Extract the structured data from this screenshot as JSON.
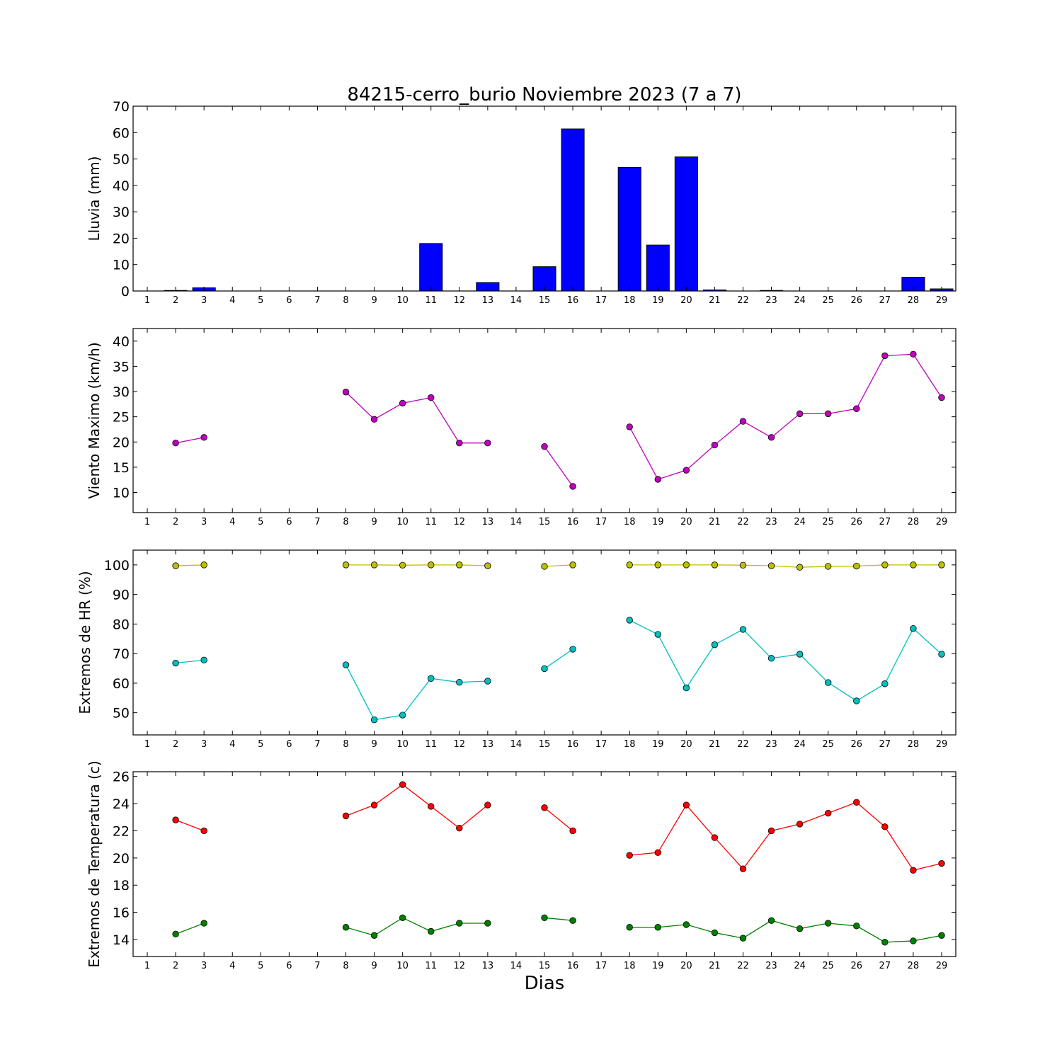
{
  "figure": {
    "title": "84215-cerro_burio Noviembre 2023  (7 a 7)",
    "xlabel": "Dias"
  },
  "chart_data": [
    {
      "type": "bar",
      "ylabel": "Lluvia (mm)",
      "ylim": [
        0,
        70
      ],
      "yticks": [
        0,
        10,
        20,
        30,
        40,
        50,
        60,
        70
      ],
      "categories": [
        "1",
        "2",
        "3",
        "4",
        "5",
        "6",
        "7",
        "8",
        "9",
        "10",
        "11",
        "12",
        "13",
        "14",
        "15",
        "16",
        "17",
        "18",
        "19",
        "20",
        "21",
        "22",
        "23",
        "24",
        "25",
        "26",
        "27",
        "28",
        "29"
      ],
      "series": [
        {
          "color": "#0000ff",
          "values": [
            0,
            0.2,
            1.2,
            0,
            0,
            0,
            0,
            0,
            0,
            0,
            18,
            0,
            3.2,
            0,
            9.2,
            61.4,
            0,
            46.8,
            17.4,
            50.8,
            0.4,
            0,
            0.2,
            0,
            0,
            0,
            0,
            5.2,
            0.8
          ]
        }
      ],
      "grid": false
    },
    {
      "type": "line",
      "ylabel": "Viento Maximo (km/h)",
      "ylim": [
        6,
        42.5
      ],
      "yticks": [
        10,
        15,
        20,
        25,
        30,
        35,
        40
      ],
      "categories": [
        "1",
        "2",
        "3",
        "4",
        "5",
        "6",
        "7",
        "8",
        "9",
        "10",
        "11",
        "12",
        "13",
        "14",
        "15",
        "16",
        "17",
        "18",
        "19",
        "20",
        "21",
        "22",
        "23",
        "24",
        "25",
        "26",
        "27",
        "28",
        "29"
      ],
      "series": [
        {
          "color": "#bf00bf",
          "values": [
            null,
            19.8,
            20.9,
            null,
            null,
            null,
            null,
            29.9,
            24.5,
            27.7,
            28.8,
            19.8,
            19.8,
            null,
            19.1,
            11.2,
            null,
            23.0,
            12.6,
            14.4,
            19.4,
            24.1,
            20.9,
            25.6,
            25.6,
            26.6,
            37.1,
            37.4,
            28.8
          ]
        }
      ],
      "grid": false
    },
    {
      "type": "line",
      "ylabel": "Extremos de HR (%)",
      "ylim": [
        42.5,
        105
      ],
      "yticks": [
        50,
        60,
        70,
        80,
        90,
        100
      ],
      "categories": [
        "1",
        "2",
        "3",
        "4",
        "5",
        "6",
        "7",
        "8",
        "9",
        "10",
        "11",
        "12",
        "13",
        "14",
        "15",
        "16",
        "17",
        "18",
        "19",
        "20",
        "21",
        "22",
        "23",
        "24",
        "25",
        "26",
        "27",
        "28",
        "29"
      ],
      "series": [
        {
          "color": "#bfbf00",
          "values": [
            null,
            99.7,
            100,
            null,
            null,
            null,
            null,
            100,
            100,
            99.9,
            100,
            100,
            99.7,
            null,
            99.5,
            100,
            null,
            100,
            100,
            100,
            100,
            99.9,
            99.7,
            99.2,
            99.5,
            99.6,
            100,
            100,
            100
          ]
        },
        {
          "color": "#00bfbf",
          "values": [
            null,
            66.8,
            67.8,
            null,
            null,
            null,
            null,
            66.2,
            47.6,
            49.2,
            61.6,
            60.3,
            60.7,
            null,
            64.9,
            71.5,
            null,
            81.3,
            76.5,
            58.4,
            73.0,
            78.2,
            68.4,
            69.8,
            60.2,
            54.0,
            59.8,
            78.5,
            69.8
          ]
        }
      ],
      "grid": false
    },
    {
      "type": "line",
      "ylabel": "Extremos de Temperatura (c)",
      "ylim": [
        12.75,
        26.35
      ],
      "yticks": [
        14,
        16,
        18,
        20,
        22,
        24,
        26
      ],
      "categories": [
        "1",
        "2",
        "3",
        "4",
        "5",
        "6",
        "7",
        "8",
        "9",
        "10",
        "11",
        "12",
        "13",
        "14",
        "15",
        "16",
        "17",
        "18",
        "19",
        "20",
        "21",
        "22",
        "23",
        "24",
        "25",
        "26",
        "27",
        "28",
        "29"
      ],
      "series": [
        {
          "color": "#ff0000",
          "values": [
            null,
            22.8,
            22.0,
            null,
            null,
            null,
            null,
            23.1,
            23.9,
            25.4,
            23.8,
            22.2,
            23.9,
            null,
            23.7,
            22.0,
            null,
            20.2,
            20.4,
            23.9,
            21.5,
            19.2,
            22.0,
            22.5,
            23.3,
            24.1,
            22.3,
            19.1,
            19.6
          ]
        },
        {
          "color": "#008000",
          "values": [
            null,
            14.4,
            15.2,
            null,
            null,
            null,
            null,
            14.9,
            14.3,
            15.6,
            14.6,
            15.2,
            15.2,
            null,
            15.6,
            15.4,
            null,
            14.9,
            14.9,
            15.1,
            14.5,
            14.1,
            15.4,
            14.8,
            15.2,
            15.0,
            13.8,
            13.9,
            14.3
          ]
        }
      ],
      "grid": false
    }
  ]
}
